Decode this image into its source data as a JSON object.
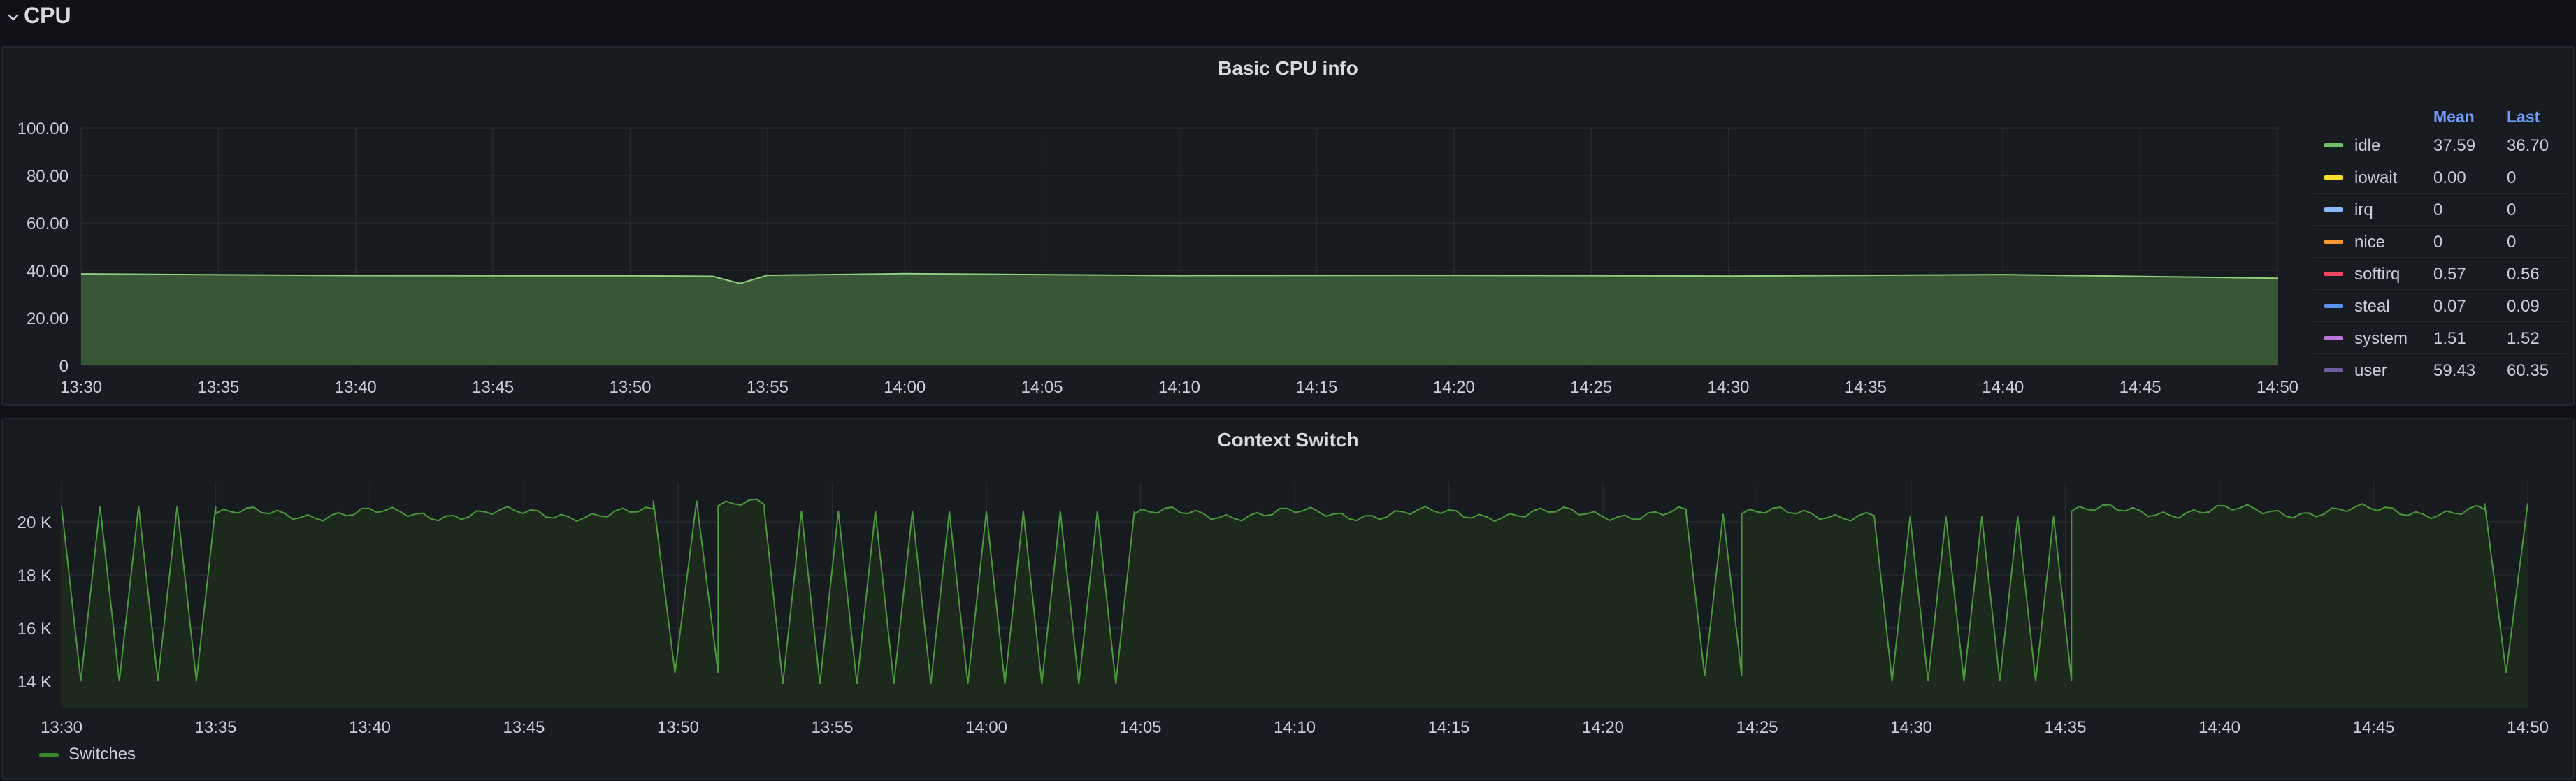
{
  "row": {
    "title": "CPU"
  },
  "cpu_panel": {
    "title": "Basic CPU info",
    "legend": {
      "headers": {
        "mean": "Mean",
        "last": "Last"
      },
      "items": [
        {
          "name": "idle",
          "color": "#73bf69",
          "mean": "37.59",
          "last": "36.70"
        },
        {
          "name": "iowait",
          "color": "#fade2a",
          "mean": "0.00",
          "last": "0"
        },
        {
          "name": "irq",
          "color": "#8ab8ff",
          "mean": "0",
          "last": "0"
        },
        {
          "name": "nice",
          "color": "#ff9830",
          "mean": "0",
          "last": "0"
        },
        {
          "name": "softirq",
          "color": "#f2495c",
          "mean": "0.57",
          "last": "0.56"
        },
        {
          "name": "steal",
          "color": "#5794f2",
          "mean": "0.07",
          "last": "0.09"
        },
        {
          "name": "system",
          "color": "#b877d9",
          "mean": "1.51",
          "last": "1.52"
        },
        {
          "name": "user",
          "color": "#705da0",
          "mean": "59.43",
          "last": "60.35"
        }
      ]
    }
  },
  "ctx_panel": {
    "title": "Context Switch",
    "legend": {
      "name": "Switches",
      "color": "#37872d"
    }
  },
  "chart_data": [
    {
      "type": "area",
      "title": "Basic CPU info",
      "x_ticks": [
        "13:30",
        "13:35",
        "13:40",
        "13:45",
        "13:50",
        "13:55",
        "14:00",
        "14:05",
        "14:10",
        "14:15",
        "14:20",
        "14:25",
        "14:30",
        "14:35",
        "14:40",
        "14:45",
        "14:50"
      ],
      "y_ticks": [
        "0",
        "20.00",
        "40.00",
        "60.00",
        "80.00",
        "100.00"
      ],
      "ylim": [
        0,
        100
      ],
      "grid": true,
      "legend_placement": "right",
      "series": [
        {
          "name": "idle",
          "color": "#73bf69",
          "approx_value": 38,
          "x": [
            "13:30",
            "13:40",
            "13:50",
            "13:53",
            "13:54",
            "13:55",
            "14:00",
            "14:10",
            "14:20",
            "14:30",
            "14:40",
            "14:50"
          ],
          "y": [
            38.5,
            37.8,
            37.7,
            37.5,
            34.5,
            37.9,
            38.6,
            37.8,
            37.9,
            37.6,
            38.2,
            36.7
          ]
        }
      ]
    },
    {
      "type": "line",
      "title": "Context Switch",
      "x_ticks": [
        "13:30",
        "13:35",
        "13:40",
        "13:45",
        "13:50",
        "13:55",
        "14:00",
        "14:05",
        "14:10",
        "14:15",
        "14:20",
        "14:25",
        "14:30",
        "14:35",
        "14:40",
        "14:45",
        "14:50"
      ],
      "y_ticks": [
        "14 K",
        "16 K",
        "18 K",
        "20 K"
      ],
      "ylim": [
        13000,
        21500
      ],
      "grid": true,
      "legend_placement": "bottom-left",
      "series": [
        {
          "name": "Switches",
          "color": "#37872d",
          "segments": [
            {
              "from": "13:30",
              "to": "13:35",
              "mode": "oscillate",
              "low": 14000,
              "high": 20600
            },
            {
              "from": "13:35",
              "to": "13:49.2",
              "mode": "stable",
              "level": 20300
            },
            {
              "from": "13:49.2",
              "to": "13:51.3",
              "mode": "oscillate",
              "low": 14300,
              "high": 20800
            },
            {
              "from": "13:51.3",
              "to": "13:52.8",
              "mode": "stable",
              "level": 20600
            },
            {
              "from": "13:52.8",
              "to": "14:04.8",
              "mode": "oscillate",
              "low": 13900,
              "high": 20400
            },
            {
              "from": "14:04.8",
              "to": "14:22.7",
              "mode": "stable",
              "level": 20300
            },
            {
              "from": "14:22.7",
              "to": "14:24.5",
              "mode": "oscillate",
              "low": 14200,
              "high": 20300
            },
            {
              "from": "14:24.5",
              "to": "14:28.8",
              "mode": "stable",
              "level": 20300
            },
            {
              "from": "14:28.8",
              "to": "14:35.2",
              "mode": "oscillate",
              "low": 14000,
              "high": 20200
            },
            {
              "from": "14:35.2",
              "to": "14:48.6",
              "mode": "stable",
              "level": 20400
            },
            {
              "from": "14:48.6",
              "to": "14:50",
              "mode": "oscillate",
              "low": 14300,
              "high": 20700
            }
          ]
        }
      ]
    }
  ]
}
